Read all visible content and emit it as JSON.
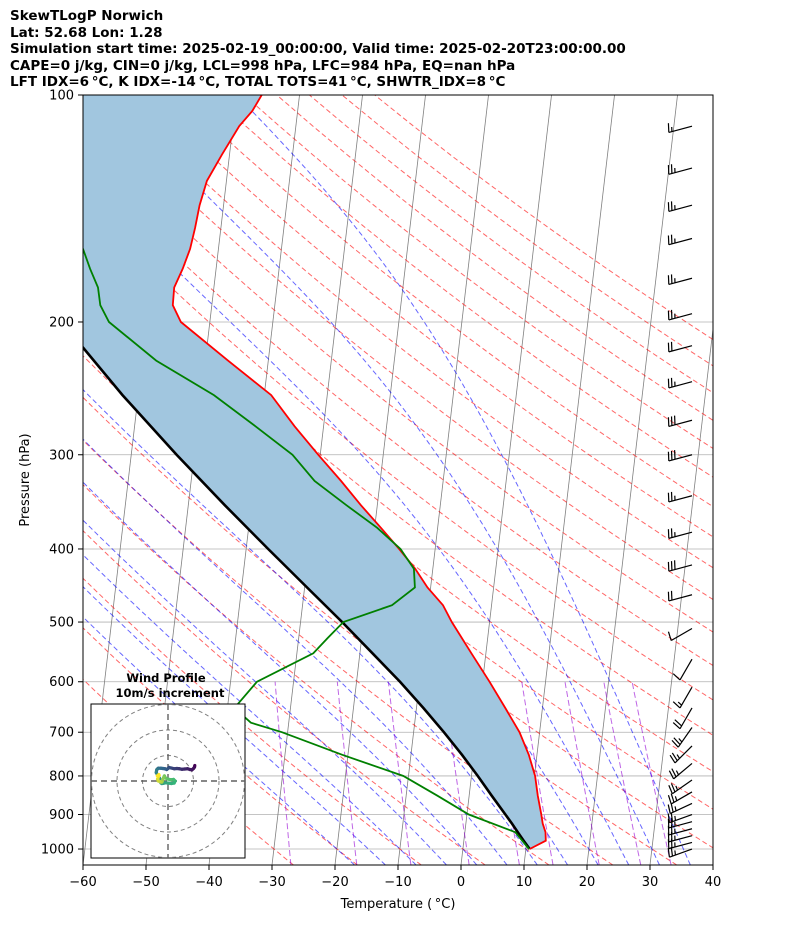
{
  "header": {
    "line1": "SkewTLogP Norwich",
    "line2": "Lat: 52.68   Lon: 1.28",
    "line3": "Simulation start time: 2025-02-19_00:00:00, Valid time: 2025-02-20T23:00:00.00",
    "line4": "CAPE=0 j/kg, CIN=0 j/kg, LCL=998 hPa, LFC=984 hPa, EQ=nan hPa",
    "line5": "LFT IDX=6 °C, K IDX=-14 °C, TOTAL TOTS=41 °C, SHWTR_IDX=8 °C"
  },
  "chart_data": {
    "type": "skew-t log-p",
    "xlabel": "Temperature ( °C)",
    "ylabel": "Pressure (hPa)",
    "xlim": [
      -60,
      40
    ],
    "ylim": [
      1050,
      100
    ],
    "x_ticks": [
      "−60",
      "−50",
      "−40",
      "−30",
      "−20",
      "−10",
      "0",
      "10",
      "20",
      "30",
      "40"
    ],
    "y_ticks": [
      "100",
      "200",
      "300",
      "400",
      "500",
      "600",
      "700",
      "800",
      "900",
      "1000"
    ],
    "y_scale": "log",
    "grid": true,
    "series": [
      {
        "role": "temperature",
        "color": "#ff0000",
        "p": [
          1000,
          975,
          950,
          925,
          900,
          850,
          800,
          750,
          700,
          650,
          600,
          550,
          500,
          475,
          450,
          425,
          400,
          375,
          350,
          325,
          300,
          275,
          250,
          225,
          200,
          190,
          180,
          170,
          160,
          150,
          140,
          130,
          120,
          110,
          105,
          100
        ],
        "t": [
          10.6,
          13.0,
          12.8,
          12.2,
          11.8,
          10.9,
          10.1,
          8.7,
          6.8,
          4.1,
          1.1,
          -2.3,
          -6.0,
          -7.7,
          -10.5,
          -12.8,
          -15.7,
          -19.0,
          -22.6,
          -26.2,
          -30.3,
          -34.6,
          -38.9,
          -46.4,
          -54.6,
          -56.2,
          -56.3,
          -55.3,
          -54.5,
          -54.1,
          -53.8,
          -53.1,
          -51.2,
          -49.0,
          -47.2,
          -46.0
        ]
      },
      {
        "role": "dewpoint",
        "color": "#008000",
        "p": [
          1000,
          950,
          900,
          850,
          800,
          750,
          700,
          680,
          650,
          600,
          550,
          525,
          500,
          475,
          450,
          425,
          400,
          375,
          350,
          325,
          300,
          275,
          250,
          225,
          200,
          190,
          180,
          170,
          160,
          150,
          140,
          130,
          120,
          110,
          100
        ],
        "td": [
          10.5,
          8.0,
          0.3,
          -5.0,
          -10.8,
          -20.9,
          -30.9,
          -36.0,
          -38.9,
          -35.8,
          -27.4,
          -25.4,
          -23.2,
          -15.8,
          -12.5,
          -13.0,
          -15.5,
          -19.6,
          -24.9,
          -30.4,
          -34.4,
          -40.8,
          -48.0,
          -57.8,
          -66.0,
          -67.7,
          -68.4,
          -70.0,
          -71.5,
          -76.7,
          -77.8,
          -77.8,
          -78.1,
          -78.5,
          -79.2
        ]
      },
      {
        "role": "parcel",
        "color": "#000000",
        "p": [
          1000,
          975,
          950,
          925,
          900,
          850,
          800,
          750,
          700,
          650,
          600,
          550,
          500,
          450,
          400,
          350,
          300,
          250,
          200,
          150,
          125,
          100
        ],
        "t": [
          10.6,
          9.5,
          8.4,
          7.3,
          6.1,
          3.6,
          1.0,
          -1.9,
          -5.2,
          -8.9,
          -13.1,
          -18.0,
          -23.4,
          -29.6,
          -36.5,
          -44.2,
          -52.8,
          -62.5,
          -73.5,
          -86.5,
          -94.0,
          -102.4
        ]
      }
    ],
    "shading": {
      "between": [
        "temperature",
        "parcel"
      ],
      "color": "#a1c6df"
    },
    "wind_barbs": {
      "p": [
        1000,
        980,
        960,
        940,
        920,
        900,
        870,
        840,
        810,
        770,
        730,
        690,
        650,
        610,
        560,
        510,
        460,
        420,
        380,
        340,
        300,
        270,
        240,
        215,
        195,
        175,
        155,
        140,
        125,
        110
      ],
      "speed_kt": [
        25,
        25,
        25,
        25,
        25,
        25,
        25,
        25,
        25,
        25,
        25,
        25,
        20,
        15,
        10,
        10,
        20,
        30,
        25,
        25,
        30,
        30,
        25,
        20,
        25,
        25,
        25,
        25,
        25,
        15
      ],
      "dir_deg": [
        250,
        255,
        255,
        255,
        255,
        250,
        245,
        240,
        235,
        230,
        225,
        215,
        210,
        210,
        210,
        240,
        255,
        255,
        255,
        255,
        255,
        255,
        255,
        255,
        255,
        255,
        255,
        255,
        255,
        255
      ]
    },
    "inset": {
      "title": "Wind Profile",
      "subtitle": "10m/s increment",
      "hodograph_u": [
        10.5,
        10.4,
        10.0,
        9.4,
        8.6,
        7.7,
        6.6,
        5.5,
        4.5,
        3.5,
        2.5,
        1.2,
        0.4,
        0.0,
        -0.5,
        -1.2,
        -2.0,
        -2.8,
        -3.8,
        -4.2,
        -4.4,
        -4.5,
        -4.6,
        -4.0,
        -3.4,
        -3.0,
        -2.8,
        -2.4,
        -1.8,
        -1.1,
        0.0,
        1.3,
        2.4,
        2.8,
        2.2,
        1.0,
        -0.3,
        -1.1,
        -1.4,
        -1.7,
        -2.1,
        -2.2,
        -2.4,
        -2.8,
        -3.2,
        -3.8,
        -4.1,
        -3.8,
        -3.5,
        -3.6,
        -4.2
      ],
      "hodograph_v": [
        6.1,
        5.5,
        4.9,
        4.4,
        4.5,
        4.8,
        4.7,
        4.6,
        4.8,
        4.9,
        4.8,
        5.1,
        5.3,
        4.9,
        4.5,
        4.8,
        4.9,
        5.0,
        5.0,
        4.7,
        4.4,
        4.0,
        3.3,
        2.2,
        1.2,
        0.3,
        -0.7,
        -1.0,
        -0.9,
        -0.7,
        -0.8,
        -1.0,
        -0.8,
        0.0,
        0.6,
        0.5,
        0.8,
        1.3,
        2.0,
        1.4,
        0.6,
        0.0,
        -0.4,
        -0.4,
        -0.2,
        0.0,
        0.7,
        1.5,
        2.2,
        2.5,
        2.0
      ],
      "rings_ms": [
        10,
        20,
        30
      ],
      "colormap": [
        "#440154",
        "#31688e",
        "#35b779",
        "#fde725"
      ]
    },
    "colors": {
      "dry_adiabat": "#ff0000",
      "moist_adiabat": "#0000ff",
      "mixing_ratio": "#9400d3",
      "isotherm": "#808080",
      "shading": "#a1c6df"
    }
  }
}
